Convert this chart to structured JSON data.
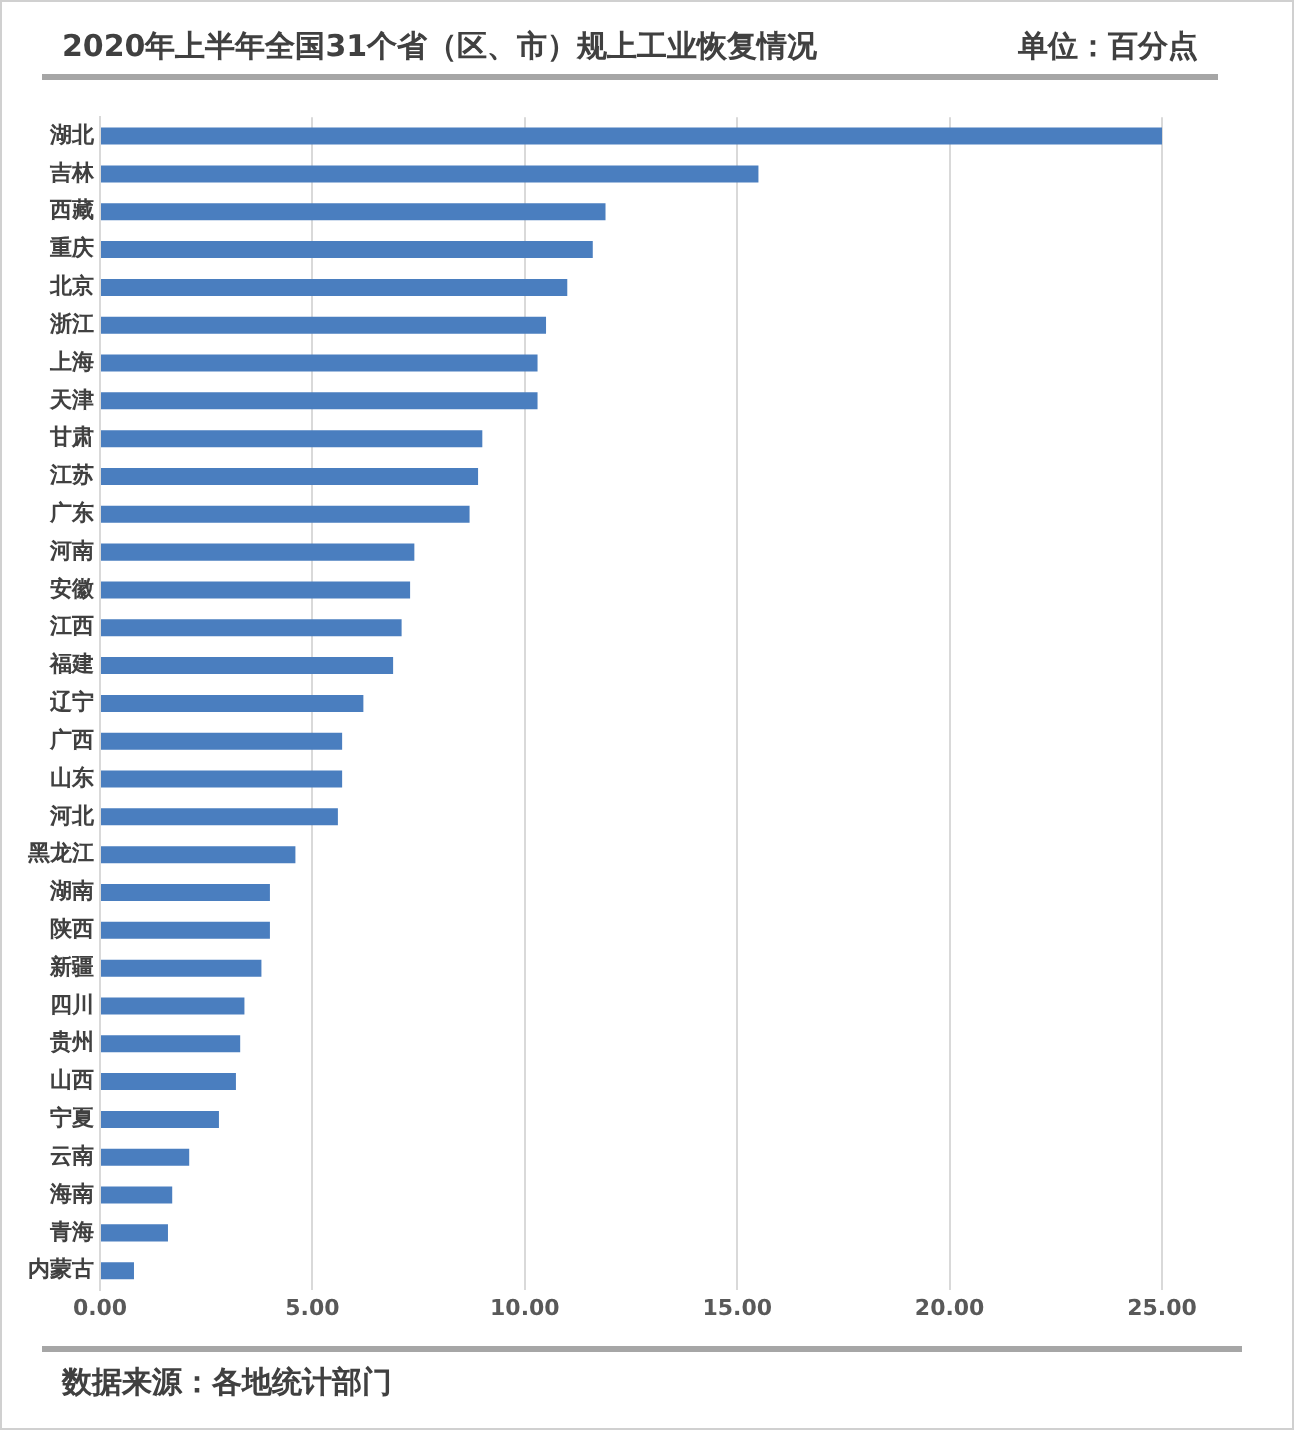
{
  "chart_data": {
    "type": "bar",
    "orientation": "horizontal",
    "title": "2020年上半年全国31个省（区、市）规上工业恢复情况",
    "subtitle": "单位：百分点",
    "categories": [
      "湖北",
      "吉林",
      "西藏",
      "重庆",
      "北京",
      "浙江",
      "上海",
      "天津",
      "甘肃",
      "江苏",
      "广东",
      "河南",
      "安徽",
      "江西",
      "福建",
      "辽宁",
      "广西",
      "山东",
      "河北",
      "黑龙江",
      "湖南",
      "陕西",
      "新疆",
      "四川",
      "贵州",
      "山西",
      "宁夏",
      "云南",
      "海南",
      "青海",
      "内蒙古"
    ],
    "values": [
      25.0,
      15.5,
      11.9,
      11.6,
      11.0,
      10.5,
      10.3,
      10.3,
      9.0,
      8.9,
      8.7,
      7.4,
      7.3,
      7.1,
      6.9,
      6.2,
      5.7,
      5.7,
      5.6,
      4.6,
      4.0,
      4.0,
      3.8,
      3.4,
      3.3,
      3.2,
      2.8,
      2.1,
      1.7,
      1.6,
      0.8
    ],
    "color": "#4a7ebf",
    "xlim": [
      0,
      25
    ],
    "xticks": [
      {
        "value": 0,
        "label": "0.00"
      },
      {
        "value": 5,
        "label": "5.00"
      },
      {
        "value": 10,
        "label": "10.00"
      },
      {
        "value": 15,
        "label": "15.00"
      },
      {
        "value": 20,
        "label": "20.00"
      },
      {
        "value": 25,
        "label": "25.00"
      }
    ],
    "grid": "x",
    "annotations": [
      "数据来源：各地统计部门"
    ]
  }
}
